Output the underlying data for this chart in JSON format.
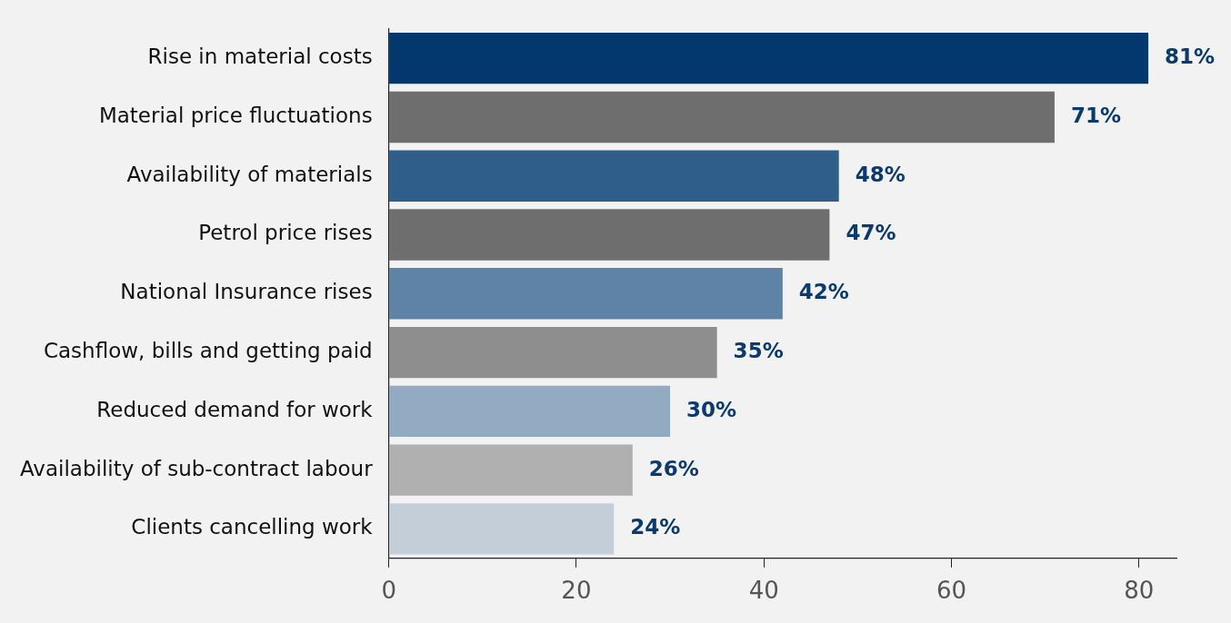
{
  "chart_data": {
    "type": "bar",
    "orientation": "horizontal",
    "categories": [
      "Rise in material costs",
      "Material price fluctuations",
      "Availability of materials",
      "Petrol price rises",
      "National Insurance rises",
      "Cashflow, bills and getting paid",
      "Reduced demand for work",
      "Availability of sub-contract labour",
      "Clients cancelling work"
    ],
    "values": [
      81,
      71,
      48,
      47,
      42,
      35,
      30,
      26,
      24
    ],
    "colors": [
      "#02386e",
      "#6e6e6e",
      "#2f5e8a",
      "#6e6e6e",
      "#5f83a6",
      "#8e8e8e",
      "#93abc2",
      "#b0b0b0",
      "#c3ced9"
    ],
    "value_labels": [
      "81%",
      "71%",
      "48%",
      "47%",
      "42%",
      "35%",
      "30%",
      "26%",
      "24%"
    ],
    "xlim": [
      0,
      84
    ],
    "xticks": [
      0,
      20,
      40,
      60,
      80
    ],
    "grid": false,
    "legend": false
  }
}
